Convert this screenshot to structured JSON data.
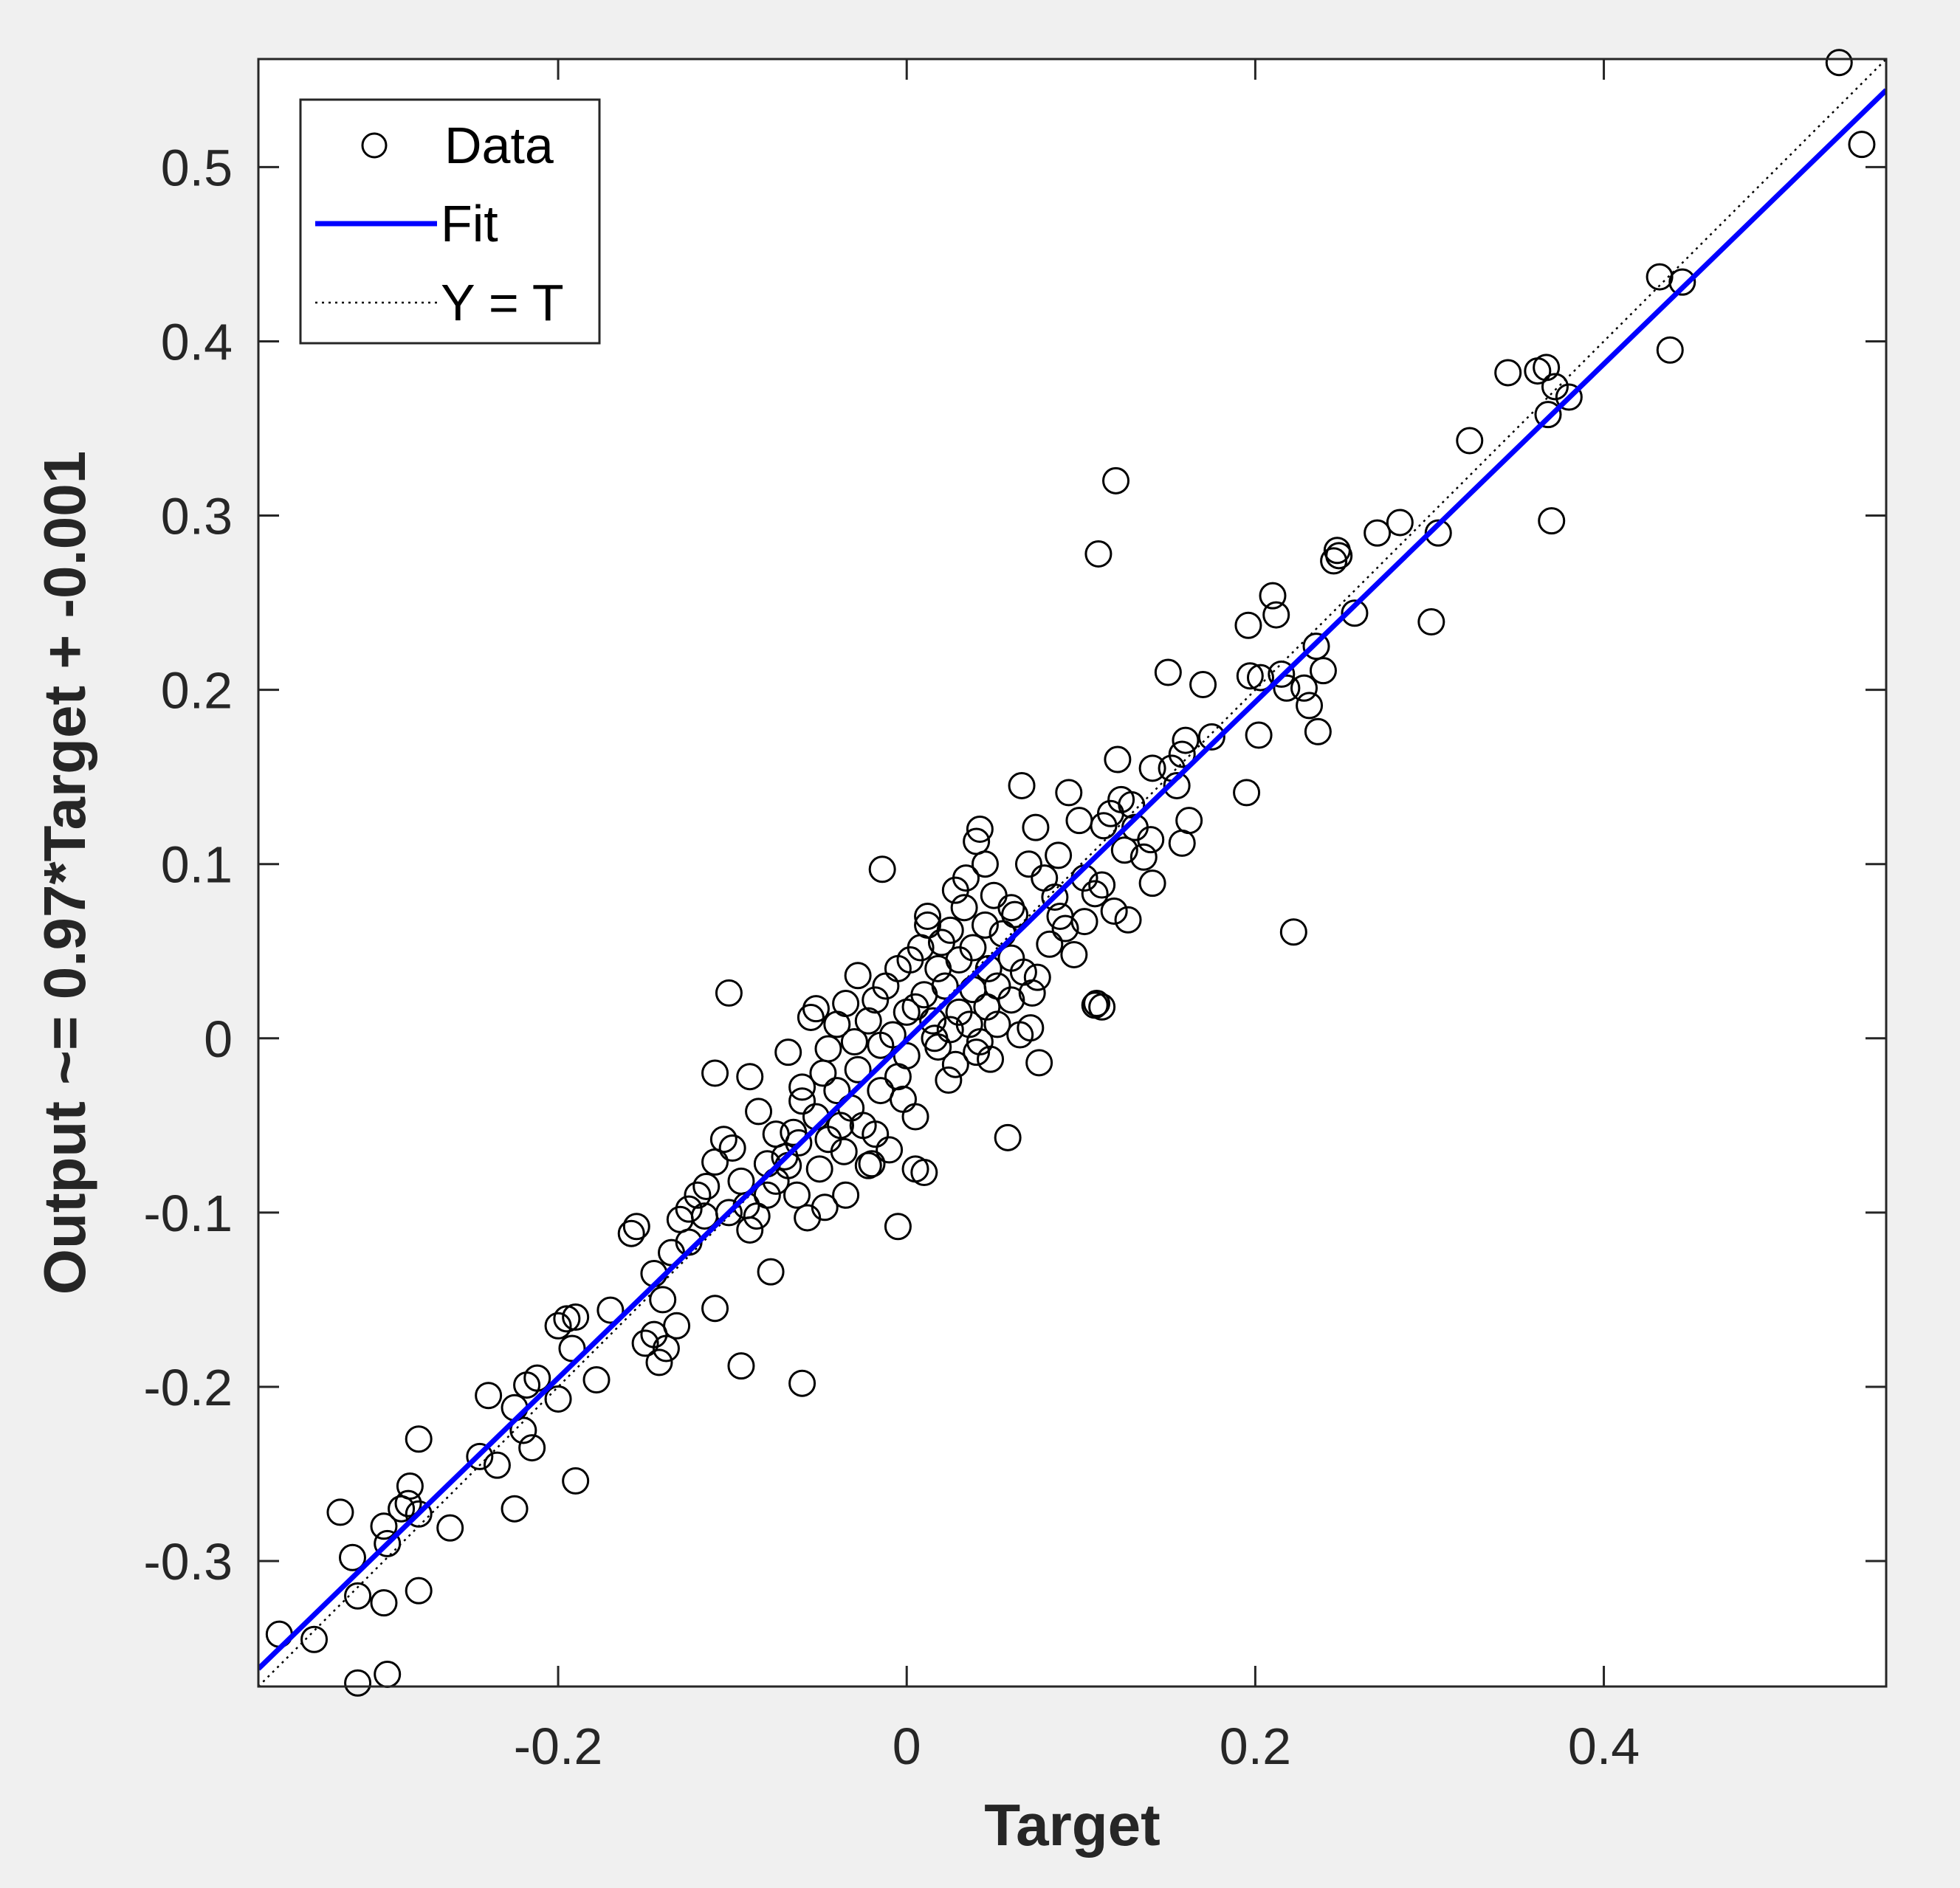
{
  "colors": {
    "figure_bg": "#f0f0f0",
    "axes_bg": "#ffffff",
    "axis_color": "#262626",
    "marker_color": "#000000",
    "fit_color": "#0000ff",
    "ideal_color": "#000000"
  },
  "chart_data": {
    "type": "scatter",
    "xlabel": "Target",
    "ylabel": "Output ~= 0.97*Target + -0.001",
    "xlim": [
      -0.372,
      0.562
    ],
    "ylim": [
      -0.372,
      0.562
    ],
    "xticks": [
      -0.2,
      0,
      0.2,
      0.4
    ],
    "xtick_labels": [
      "-0.2",
      "0",
      "0.2",
      "0.4"
    ],
    "yticks": [
      -0.3,
      -0.2,
      -0.1,
      0,
      0.1,
      0.2,
      0.3,
      0.4,
      0.5
    ],
    "ytick_labels": [
      "-0.3",
      "-0.2",
      "-0.1",
      "0",
      "0.1",
      "0.2",
      "0.3",
      "0.4",
      "0.5"
    ],
    "grid": false,
    "legend_position": "top-left",
    "legend": [
      {
        "label": "Data",
        "style": "circle-marker"
      },
      {
        "label": "Fit",
        "style": "solid-line"
      },
      {
        "label": "Y = T",
        "style": "dotted-line"
      }
    ],
    "fit": {
      "slope": 0.97,
      "intercept": -0.001
    },
    "series": [
      {
        "label": "Data",
        "points": [
          [
            0.535,
            0.56
          ],
          [
            0.548,
            0.513
          ],
          [
            0.432,
            0.437
          ],
          [
            0.445,
            0.434
          ],
          [
            0.438,
            0.395
          ],
          [
            0.345,
            0.382
          ],
          [
            0.362,
            0.383
          ],
          [
            0.367,
            0.385
          ],
          [
            0.372,
            0.374
          ],
          [
            0.368,
            0.358
          ],
          [
            0.38,
            0.368
          ],
          [
            0.37,
            0.297
          ],
          [
            0.323,
            0.343
          ],
          [
            0.305,
            0.29
          ],
          [
            0.301,
            0.239
          ],
          [
            0.283,
            0.296
          ],
          [
            0.27,
            0.29
          ],
          [
            0.257,
            0.244
          ],
          [
            0.247,
            0.28
          ],
          [
            0.245,
            0.274
          ],
          [
            0.248,
            0.277
          ],
          [
            0.235,
            0.225
          ],
          [
            0.239,
            0.211
          ],
          [
            0.228,
            0.201
          ],
          [
            0.231,
            0.191
          ],
          [
            0.236,
            0.176
          ],
          [
            0.222,
            0.061
          ],
          [
            0.21,
            0.254
          ],
          [
            0.212,
            0.243
          ],
          [
            0.196,
            0.237
          ],
          [
            0.203,
            0.207
          ],
          [
            0.197,
            0.208
          ],
          [
            0.218,
            0.201
          ],
          [
            0.215,
            0.209
          ],
          [
            0.202,
            0.174
          ],
          [
            0.195,
            0.141
          ],
          [
            0.17,
            0.203
          ],
          [
            0.15,
            0.21
          ],
          [
            0.175,
            0.173
          ],
          [
            0.16,
            0.171
          ],
          [
            0.158,
            0.163
          ],
          [
            0.152,
            0.155
          ],
          [
            0.155,
            0.145
          ],
          [
            0.162,
            0.125
          ],
          [
            0.158,
            0.112
          ],
          [
            0.141,
            0.155
          ],
          [
            0.129,
            0.134
          ],
          [
            0.123,
            0.137
          ],
          [
            0.121,
            0.16
          ],
          [
            0.113,
            0.122
          ],
          [
            0.117,
            0.129
          ],
          [
            0.131,
            0.121
          ],
          [
            0.14,
            0.114
          ],
          [
            0.125,
            0.108
          ],
          [
            0.102,
            0.092
          ],
          [
            0.108,
            0.083
          ],
          [
            0.119,
            0.073
          ],
          [
            0.127,
            0.068
          ],
          [
            0.141,
            0.089
          ],
          [
            0.136,
            0.104
          ],
          [
            0.112,
            0.088
          ],
          [
            0.093,
            0.141
          ],
          [
            0.099,
            0.125
          ],
          [
            0.087,
            0.105
          ],
          [
            0.074,
            0.121
          ],
          [
            0.066,
            0.145
          ],
          [
            0.07,
            0.1
          ],
          [
            0.079,
            0.092
          ],
          [
            0.085,
            0.081
          ],
          [
            0.091,
            0.063
          ],
          [
            0.096,
            0.048
          ],
          [
            0.102,
            0.067
          ],
          [
            0.108,
            0.019
          ],
          [
            0.112,
            0.018
          ],
          [
            0.109,
            0.02
          ],
          [
            0.076,
            -0.014
          ],
          [
            0.071,
            0.006
          ],
          [
            0.065,
            0.002
          ],
          [
            0.058,
            -0.057
          ],
          [
            0.12,
            0.32
          ],
          [
            0.11,
            0.278
          ],
          [
            0.042,
            0.12
          ],
          [
            0.04,
            0.113
          ],
          [
            0.05,
            0.082
          ],
          [
            0.028,
            0.085
          ],
          [
            0.033,
            0.075
          ],
          [
            0.045,
            0.065
          ],
          [
            0.055,
            0.06
          ],
          [
            0.062,
            0.071
          ],
          [
            0.038,
            0.052
          ],
          [
            0.047,
            0.04
          ],
          [
            0.052,
            0.03
          ],
          [
            0.06,
            0.046
          ],
          [
            0.067,
            0.038
          ],
          [
            0.072,
            0.026
          ],
          [
            0.025,
            0.062
          ],
          [
            0.018,
            0.04
          ],
          [
            0.022,
            0.03
          ],
          [
            0.03,
            0.015
          ],
          [
            0.036,
            0.008
          ],
          [
            0.046,
            0.018
          ],
          [
            0.015,
            0.01
          ],
          [
            0.01,
            0.025
          ],
          [
            0.005,
            0.018
          ],
          [
            0.008,
            0.052
          ],
          [
            0.012,
            0.065
          ],
          [
            0.002,
            0.045
          ],
          [
            -0.005,
            0.04
          ],
          [
            -0.012,
            0.03
          ],
          [
            -0.018,
            0.022
          ],
          [
            -0.022,
            0.01
          ],
          [
            -0.008,
            0.002
          ],
          [
            -0.015,
            -0.004
          ],
          [
            0.0,
            -0.01
          ],
          [
            0.018,
            -0.005
          ],
          [
            0.028,
            -0.015
          ],
          [
            0.04,
            -0.008
          ],
          [
            0.048,
            -0.012
          ],
          [
            0.024,
            -0.024
          ],
          [
            -0.005,
            -0.022
          ],
          [
            -0.014,
            0.097
          ],
          [
            -0.028,
            0.036
          ],
          [
            -0.035,
            0.02
          ],
          [
            -0.04,
            0.008
          ],
          [
            -0.03,
            -0.002
          ],
          [
            -0.045,
            -0.006
          ],
          [
            -0.052,
            0.017
          ],
          [
            -0.055,
            0.012
          ],
          [
            -0.048,
            -0.02
          ],
          [
            -0.04,
            -0.03
          ],
          [
            -0.032,
            -0.04
          ],
          [
            -0.025,
            -0.05
          ],
          [
            -0.018,
            -0.055
          ],
          [
            -0.01,
            -0.064
          ],
          [
            -0.022,
            -0.073
          ],
          [
            -0.036,
            -0.065
          ],
          [
            -0.045,
            -0.058
          ],
          [
            -0.052,
            -0.045
          ],
          [
            -0.06,
            -0.036
          ],
          [
            -0.065,
            -0.054
          ],
          [
            -0.07,
            -0.068
          ],
          [
            -0.075,
            -0.082
          ],
          [
            -0.08,
            -0.09
          ],
          [
            -0.086,
            -0.102
          ],
          [
            -0.09,
            -0.11
          ],
          [
            -0.095,
            -0.082
          ],
          [
            -0.1,
            -0.063
          ],
          [
            -0.105,
            -0.058
          ],
          [
            -0.11,
            -0.071
          ],
          [
            -0.115,
            -0.085
          ],
          [
            -0.12,
            -0.09
          ],
          [
            -0.125,
            -0.098
          ],
          [
            -0.13,
            -0.104
          ],
          [
            -0.135,
            -0.123
          ],
          [
            -0.11,
            -0.02
          ],
          [
            -0.102,
            0.026
          ],
          [
            -0.09,
            -0.022
          ],
          [
            -0.085,
            -0.042
          ],
          [
            -0.075,
            -0.055
          ],
          [
            -0.068,
            -0.073
          ],
          [
            -0.063,
            -0.09
          ],
          [
            -0.057,
            -0.103
          ],
          [
            -0.047,
            -0.097
          ],
          [
            -0.035,
            -0.09
          ],
          [
            -0.02,
            -0.072
          ],
          [
            0.005,
            -0.075
          ],
          [
            0.01,
            -0.077
          ],
          [
            -0.005,
            -0.108
          ],
          [
            -0.078,
            -0.134
          ],
          [
            -0.06,
            -0.198
          ],
          [
            -0.095,
            -0.188
          ],
          [
            -0.11,
            -0.155
          ],
          [
            -0.132,
            -0.165
          ],
          [
            -0.138,
            -0.178
          ],
          [
            -0.142,
            -0.186
          ],
          [
            -0.145,
            -0.17
          ],
          [
            -0.15,
            -0.175
          ],
          [
            -0.14,
            -0.15
          ],
          [
            -0.145,
            -0.135
          ],
          [
            -0.155,
            -0.108
          ],
          [
            -0.158,
            -0.112
          ],
          [
            -0.17,
            -0.156
          ],
          [
            -0.19,
            -0.16
          ],
          [
            -0.195,
            -0.161
          ],
          [
            -0.2,
            -0.165
          ],
          [
            -0.192,
            -0.178
          ],
          [
            -0.178,
            -0.196
          ],
          [
            -0.2,
            -0.207
          ],
          [
            -0.212,
            -0.195
          ],
          [
            -0.218,
            -0.199
          ],
          [
            -0.225,
            -0.212
          ],
          [
            -0.22,
            -0.225
          ],
          [
            -0.215,
            -0.235
          ],
          [
            -0.24,
            -0.205
          ],
          [
            -0.245,
            -0.24
          ],
          [
            -0.235,
            -0.245
          ],
          [
            -0.19,
            -0.254
          ],
          [
            -0.225,
            -0.27
          ],
          [
            -0.28,
            -0.23
          ],
          [
            -0.285,
            -0.257
          ],
          [
            -0.29,
            -0.27
          ],
          [
            -0.286,
            -0.267
          ],
          [
            -0.28,
            -0.273
          ],
          [
            -0.262,
            -0.281
          ],
          [
            -0.3,
            -0.28
          ],
          [
            -0.298,
            -0.29
          ],
          [
            -0.318,
            -0.298
          ],
          [
            -0.325,
            -0.272
          ],
          [
            -0.315,
            -0.32
          ],
          [
            -0.3,
            -0.324
          ],
          [
            -0.28,
            -0.317
          ],
          [
            -0.34,
            -0.345
          ],
          [
            -0.36,
            -0.342
          ],
          [
            -0.315,
            -0.37
          ],
          [
            -0.298,
            -0.365
          ],
          [
            0.012,
            0.07
          ],
          [
            0.02,
            0.055
          ],
          [
            0.034,
            0.092
          ],
          [
            0.045,
            0.1
          ],
          [
            0.06,
            0.075
          ],
          [
            0.016,
            0.0
          ],
          [
            -0.002,
            -0.035
          ],
          [
            -0.028,
            -0.018
          ],
          [
            -0.06,
            -0.028
          ],
          [
            -0.068,
            -0.008
          ],
          [
            0.052,
            0.008
          ],
          [
            0.06,
            0.022
          ],
          [
            0.075,
            0.035
          ],
          [
            0.082,
            0.054
          ],
          [
            0.088,
            0.07
          ],
          [
            0.03,
            0.045
          ],
          [
            0.005,
            -0.045
          ],
          [
            -0.015,
            -0.03
          ],
          [
            -0.05,
            -0.075
          ],
          [
            -0.08,
            -0.072
          ],
          [
            -0.092,
            -0.096
          ],
          [
            -0.102,
            -0.1
          ],
          [
            -0.116,
            -0.102
          ],
          [
            -0.125,
            -0.117
          ],
          [
            0.0,
            0.015
          ],
          [
            0.038,
            0.028
          ],
          [
            0.042,
            -0.002
          ],
          [
            -0.038,
            -0.05
          ],
          [
            -0.062,
            -0.06
          ],
          [
            0.025,
            0.005
          ]
        ]
      }
    ]
  }
}
